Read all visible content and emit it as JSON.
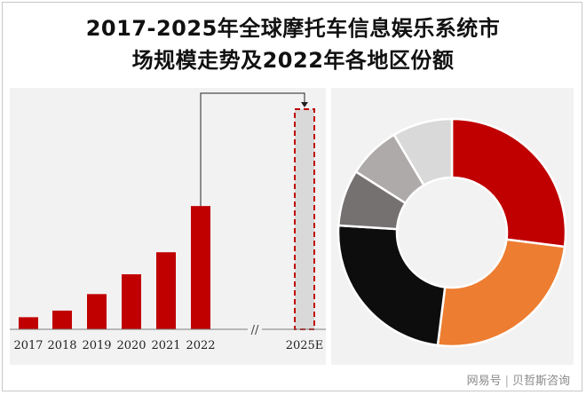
{
  "title": {
    "line1": "2017-2025年全球摩托车信息娱乐系统市",
    "line2": "场规模走势及2022年各地区份额"
  },
  "chart_data": [
    {
      "type": "bar",
      "categories": [
        "2017",
        "2018",
        "2019",
        "2020",
        "2021",
        "2022",
        "2025E"
      ],
      "values": [
        5.5,
        8.5,
        16,
        25,
        35,
        56,
        100
      ],
      "forecast_category": "2025E",
      "axis_break_label": "//",
      "xlabel": "",
      "ylabel": "",
      "ylim": [
        0,
        100
      ],
      "grid": false,
      "colors": {
        "bar": "#c00000",
        "forecast_fill": "#d9d9d9",
        "forecast_border": "#c00000",
        "connector": "#222222"
      }
    },
    {
      "type": "pie",
      "variant": "donut",
      "slices": [
        {
          "value": 27,
          "color": "#c00000"
        },
        {
          "value": 25,
          "color": "#ed7d31"
        },
        {
          "value": 24,
          "color": "#0d0d0d"
        },
        {
          "value": 8,
          "color": "#767171"
        },
        {
          "value": 7.5,
          "color": "#aeaaaa"
        },
        {
          "value": 8.5,
          "color": "#d9d9d9"
        }
      ]
    }
  ],
  "watermark": {
    "platform": "网易号",
    "separator": "|",
    "author": "贝哲斯咨询"
  }
}
